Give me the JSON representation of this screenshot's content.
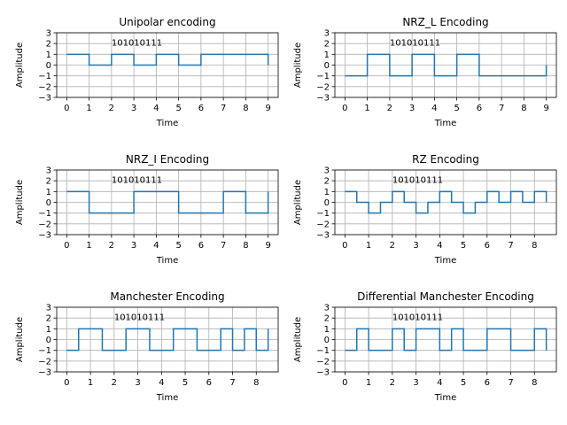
{
  "figure": {
    "background": "#ffffff",
    "line_color": "#1f77b4"
  },
  "chart_data": [
    {
      "type": "line",
      "title": "Unipolar encoding",
      "xlabel": "Time",
      "ylabel": "Amplitude",
      "annotation": "101010111",
      "annotation_at": [
        2,
        1.8
      ],
      "xlim": [
        -0.45,
        9.45
      ],
      "ylim": [
        -3,
        3
      ],
      "xticks": [
        0,
        1,
        2,
        3,
        4,
        5,
        6,
        7,
        8,
        9
      ],
      "yticks": [
        -3,
        -2,
        -1,
        0,
        1,
        2,
        3
      ],
      "series": [
        {
          "step": "post",
          "x": [
            0,
            1,
            2,
            3,
            4,
            5,
            6,
            7,
            8,
            9,
            9
          ],
          "y": [
            1,
            0,
            1,
            0,
            1,
            0,
            1,
            1,
            1,
            1,
            0
          ]
        }
      ]
    },
    {
      "type": "line",
      "title": "NRZ_L Encoding",
      "xlabel": "Time",
      "ylabel": "Amplitude",
      "annotation": "101010111",
      "annotation_at": [
        2,
        1.8
      ],
      "xlim": [
        -0.45,
        9.45
      ],
      "ylim": [
        -3,
        3
      ],
      "xticks": [
        0,
        1,
        2,
        3,
        4,
        5,
        6,
        7,
        8,
        9
      ],
      "yticks": [
        -3,
        -2,
        -1,
        0,
        1,
        2,
        3
      ],
      "series": [
        {
          "step": "post",
          "x": [
            0,
            1,
            2,
            3,
            4,
            5,
            6,
            7,
            8,
            9,
            9
          ],
          "y": [
            -1,
            1,
            -1,
            1,
            -1,
            1,
            -1,
            -1,
            -1,
            -1,
            0
          ]
        }
      ]
    },
    {
      "type": "line",
      "title": "NRZ_I Encoding",
      "xlabel": "Time",
      "ylabel": "Amplitude",
      "annotation": "101010111",
      "annotation_at": [
        2,
        1.8
      ],
      "xlim": [
        -0.45,
        9.45
      ],
      "ylim": [
        -3,
        3
      ],
      "xticks": [
        0,
        1,
        2,
        3,
        4,
        5,
        6,
        7,
        8,
        9
      ],
      "yticks": [
        -3,
        -2,
        -1,
        0,
        1,
        2,
        3
      ],
      "series": [
        {
          "step": "post",
          "x": [
            0,
            1,
            2,
            3,
            4,
            5,
            6,
            7,
            8,
            9,
            9
          ],
          "y": [
            1,
            -1,
            -1,
            1,
            1,
            -1,
            -1,
            1,
            -1,
            -1,
            1
          ]
        }
      ]
    },
    {
      "type": "line",
      "title": "RZ Encoding",
      "xlabel": "Time",
      "ylabel": "Amplitude",
      "annotation": "101010111",
      "annotation_at": [
        2,
        1.8
      ],
      "xlim": [
        -0.425,
        8.925
      ],
      "ylim": [
        -3,
        3
      ],
      "xticks": [
        0,
        1,
        2,
        3,
        4,
        5,
        6,
        7,
        8
      ],
      "yticks": [
        -3,
        -2,
        -1,
        0,
        1,
        2,
        3
      ],
      "series": [
        {
          "step": "post",
          "x": [
            0,
            0.5,
            1,
            1.5,
            2,
            2.5,
            3,
            3.5,
            4,
            4.5,
            5,
            5.5,
            6,
            6.5,
            7,
            7.5,
            8,
            8.5,
            8.5
          ],
          "y": [
            1,
            0,
            -1,
            0,
            1,
            0,
            -1,
            0,
            1,
            0,
            -1,
            0,
            1,
            0,
            1,
            0,
            1,
            1,
            0
          ]
        }
      ]
    },
    {
      "type": "line",
      "title": "Manchester Encoding",
      "xlabel": "Time",
      "ylabel": "Amplitude",
      "annotation": "101010111",
      "annotation_at": [
        2,
        1.8
      ],
      "xlim": [
        -0.425,
        8.925
      ],
      "ylim": [
        -3,
        3
      ],
      "xticks": [
        0,
        1,
        2,
        3,
        4,
        5,
        6,
        7,
        8
      ],
      "yticks": [
        -3,
        -2,
        -1,
        0,
        1,
        2,
        3
      ],
      "series": [
        {
          "step": "post",
          "x": [
            0,
            0.5,
            1,
            1.5,
            2,
            2.5,
            3,
            3.5,
            4,
            4.5,
            5,
            5.5,
            6,
            6.5,
            7,
            7.5,
            8,
            8.5,
            8.5
          ],
          "y": [
            -1,
            1,
            1,
            -1,
            -1,
            1,
            1,
            -1,
            -1,
            1,
            1,
            -1,
            -1,
            1,
            -1,
            1,
            -1,
            -1,
            1
          ]
        }
      ]
    },
    {
      "type": "line",
      "title": "Differential Manchester Encoding",
      "xlabel": "Time",
      "ylabel": "Amplitude",
      "annotation": "101010111",
      "annotation_at": [
        2,
        1.8
      ],
      "xlim": [
        -0.425,
        8.925
      ],
      "ylim": [
        -3,
        3
      ],
      "xticks": [
        0,
        1,
        2,
        3,
        4,
        5,
        6,
        7,
        8
      ],
      "yticks": [
        -3,
        -2,
        -1,
        0,
        1,
        2,
        3
      ],
      "series": [
        {
          "step": "post",
          "x": [
            0,
            0.5,
            1,
            1.5,
            2,
            2.5,
            3,
            3.5,
            4,
            4.5,
            5,
            5.5,
            6,
            6.5,
            7,
            7.5,
            8,
            8.5,
            8.5
          ],
          "y": [
            -1,
            1,
            -1,
            -1,
            1,
            -1,
            1,
            1,
            -1,
            1,
            -1,
            -1,
            1,
            1,
            -1,
            -1,
            1,
            1,
            -1
          ]
        }
      ]
    }
  ]
}
